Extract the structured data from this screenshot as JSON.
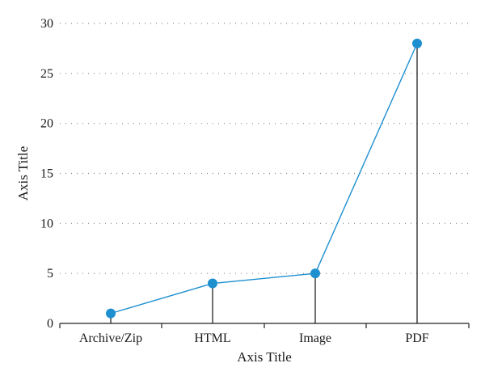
{
  "chart_data": {
    "type": "line",
    "categories": [
      "Archive/Zip",
      "HTML",
      "Image",
      "PDF"
    ],
    "series": [
      {
        "values": [
          1,
          4,
          5,
          28
        ]
      }
    ],
    "xlabel": "Axis Title",
    "ylabel": "Axis Title",
    "ylim": [
      0,
      30
    ],
    "yticks": [
      0,
      5,
      10,
      15,
      20,
      25,
      30
    ],
    "grid": "horizontal dotted",
    "drop_lines": true,
    "colors": {
      "series": "#1e90d0",
      "axis": "#222222"
    }
  }
}
